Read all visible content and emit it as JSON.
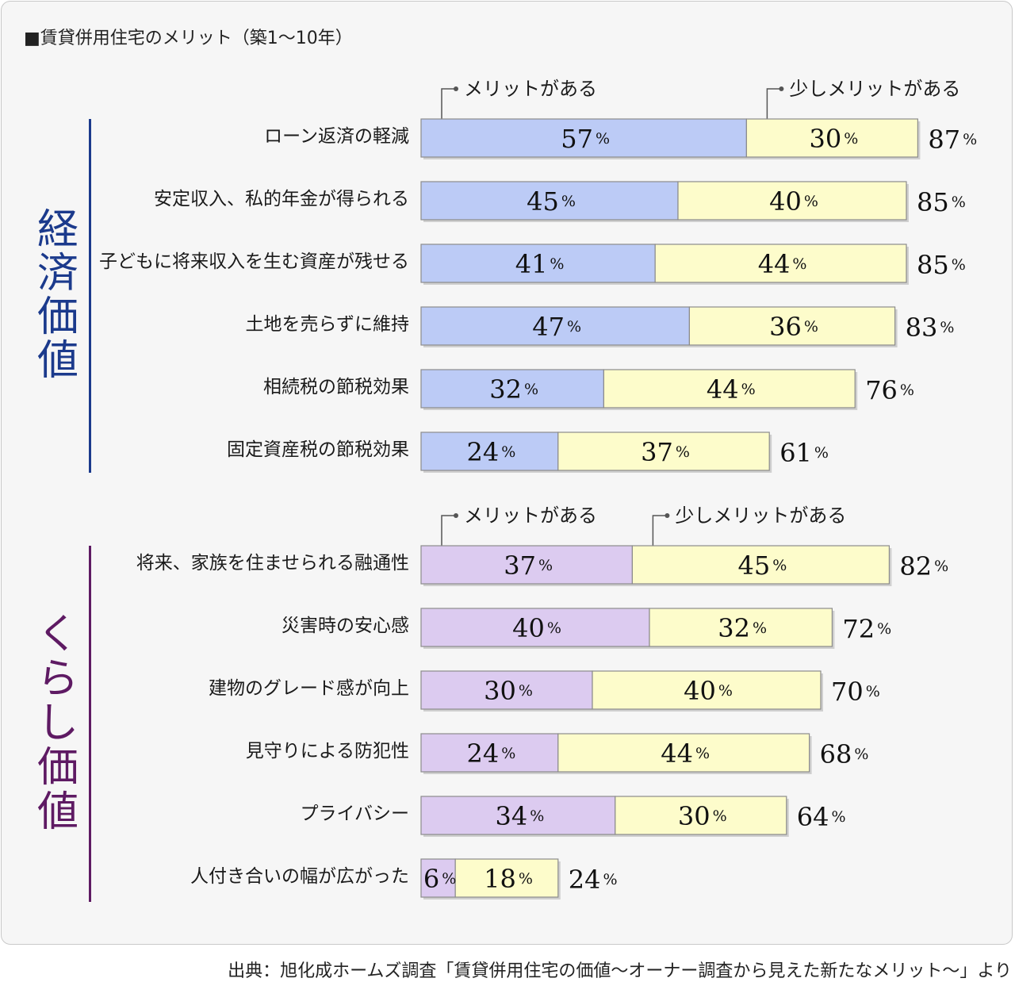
{
  "title": "■賃貸併用住宅のメリット（築1〜10年）",
  "source": "出典：旭化成ホームズ調査「賃貸併用住宅の価値〜オーナー調査から見えた新たなメリット〜」より",
  "percent_sign": "%",
  "colors": {
    "economic_main": "#bccbf6",
    "living_main": "#dccbf0",
    "secondary": "#fdfccb",
    "economic_accent": "#1b3a8c",
    "living_accent": "#5e1a63",
    "bar_border": "#8c8c8c",
    "shadow": "#cfcfcf"
  },
  "chart_data": [
    {
      "type": "bar",
      "orientation": "horizontal",
      "stacked": true,
      "group_label": "経済価値",
      "legend": [
        "メリットがある",
        "少しメリットがある"
      ],
      "categories": [
        "ローン返済の軽減",
        "安定収入、私的年金が得られる",
        "子どもに将来収入を生む資産が残せる",
        "土地を売らずに維持",
        "相続税の節税効果",
        "固定資産税の節税効果"
      ],
      "series": [
        {
          "name": "メリットがある",
          "values": [
            57,
            45,
            41,
            47,
            32,
            24
          ]
        },
        {
          "name": "少しメリットがある",
          "values": [
            30,
            40,
            44,
            36,
            44,
            37
          ]
        }
      ],
      "totals": [
        87,
        85,
        85,
        83,
        76,
        61
      ],
      "unit": "%"
    },
    {
      "type": "bar",
      "orientation": "horizontal",
      "stacked": true,
      "group_label": "くらし価値",
      "legend": [
        "メリットがある",
        "少しメリットがある"
      ],
      "categories": [
        "将来、家族を住ませられる融通性",
        "災害時の安心感",
        "建物のグレード感が向上",
        "見守りによる防犯性",
        "プライバシー",
        "人付き合いの幅が広がった"
      ],
      "series": [
        {
          "name": "メリットがある",
          "values": [
            37,
            40,
            30,
            24,
            34,
            6
          ]
        },
        {
          "name": "少しメリットがある",
          "values": [
            45,
            32,
            40,
            44,
            30,
            18
          ]
        }
      ],
      "totals": [
        82,
        72,
        70,
        68,
        64,
        24
      ],
      "unit": "%"
    }
  ]
}
